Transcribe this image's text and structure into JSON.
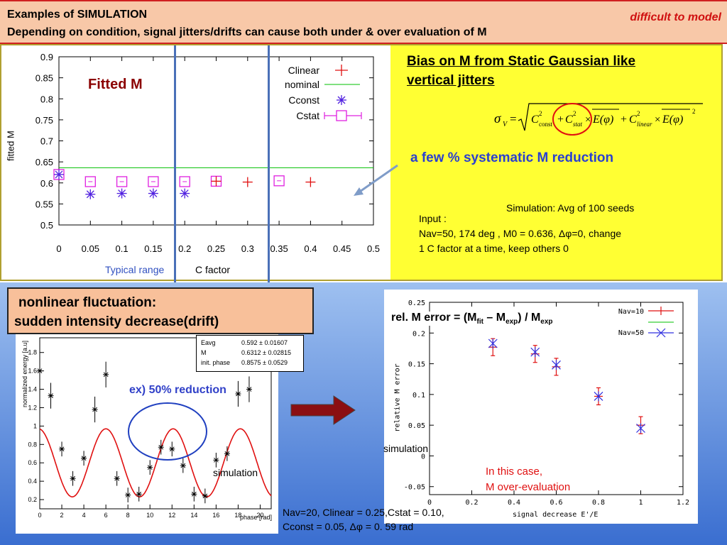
{
  "header": {
    "line1": "Examples of SIMULATION",
    "line2": "Depending on condition, signal jitters/drifts can cause both under & over evaluation of M",
    "tag": "difficult to model"
  },
  "top_chart": {
    "in_plot_label": "Fitted M",
    "ylabel": "fitted M",
    "xlabel": "C factor",
    "typical_range": "Typical range",
    "yticks": [
      "0.9",
      "0.85",
      "0.8",
      "0.75",
      "0.7",
      "0.65",
      "0.6",
      "0.55",
      "0.5"
    ],
    "xticks": [
      "0",
      "0.05",
      "0.1",
      "0.15",
      "0.2",
      "0.25",
      "0.3",
      "0.35",
      "0.4",
      "0.45",
      "0.5"
    ],
    "legend": [
      "Clinear",
      "nominal",
      "Cconst",
      "Cstat"
    ]
  },
  "right_text": {
    "bias_title_line1": "Bias on M from Static Gaussian like",
    "bias_title_line2": "vertical jitters",
    "formula": "σV = √( C²const + C²stat × E(φ) + C²linear × E(φ)² )",
    "reduction": "a few  % systematic M reduction",
    "sim_avg": "Simulation: Avg of 100 seeds",
    "input_label": "Input :",
    "input_line1": "Nav=50,  174 deg , M0 = 0.636, Δφ=0,  change",
    "input_line2": "1 C factor at a time, keep others 0"
  },
  "drift_box": {
    "line1": "nonlinear fluctuation:",
    "line2": "sudden intensity decrease(drift)"
  },
  "left_chart": {
    "ylabel": "normalized energy [a.u]",
    "xlabel": "phase  [rad]",
    "annotation": "ex)  50% reduction",
    "sim_label": "simulation",
    "stats": [
      {
        "name": "Eavg",
        "value": "0.592 ± 0.01607"
      },
      {
        "name": "M",
        "value": "0.6312 ± 0.02815"
      },
      {
        "name": "init. phase",
        "value": "0.8575 ± 0.0529"
      }
    ],
    "yticks": [
      "1.8",
      "1.6",
      "1.4",
      "1.2",
      "1",
      "0.8",
      "0.6",
      "0.4",
      "0.2"
    ],
    "xticks": [
      "0",
      "2",
      "4",
      "6",
      "8",
      "10",
      "12",
      "14",
      "16",
      "18",
      "20"
    ]
  },
  "params": {
    "line1": "Nav=20, Clinear = 0.25,Cstat = 0.10,",
    "line2": "Cconst = 0.05, Δφ = 0. 59 rad"
  },
  "right_chart": {
    "title": "rel. M error = (Mfit – Mexp) / Mexp",
    "ylabel": "relative M error",
    "xlabel": "signal decrease E'/E",
    "legend": [
      "Nav=10",
      "Nav=50"
    ],
    "sim_label": "simulation",
    "note_line1": "In this case,",
    "note_line2": "M over-evaluation",
    "yticks": [
      "0.25",
      "0.2",
      "0.15",
      "0.1",
      "0.05",
      "0",
      "-0.05"
    ],
    "xticks": [
      "0",
      "0.2",
      "0.4",
      "0.6",
      "0.8",
      "1",
      "1.2"
    ]
  },
  "chart_data": [
    {
      "type": "scatter",
      "xlabel": "C factor",
      "ylabel": "fitted M",
      "xlim": [
        0,
        0.5
      ],
      "ylim": [
        0.5,
        0.9
      ],
      "series": [
        {
          "name": "Clinear",
          "x": [
            0.25,
            0.3,
            0.4
          ],
          "y": [
            0.604,
            0.602,
            0.602
          ]
        },
        {
          "name": "nominal",
          "x": [
            0,
            0.5
          ],
          "y": [
            0.636,
            0.636
          ]
        },
        {
          "name": "Cconst",
          "x": [
            0,
            0.05,
            0.1,
            0.15,
            0.2
          ],
          "y": [
            0.62,
            0.573,
            0.575,
            0.575,
            0.575
          ]
        },
        {
          "name": "Cstat",
          "x": [
            0,
            0.05,
            0.1,
            0.15,
            0.2,
            0.25,
            0.35
          ],
          "y": [
            0.62,
            0.603,
            0.603,
            0.603,
            0.603,
            0.604,
            0.605
          ]
        }
      ]
    },
    {
      "type": "scatter",
      "xlabel": "phase  [rad]",
      "ylabel": "normalized energy [a.u]",
      "xlim": [
        0,
        21
      ],
      "ylim": [
        0.1,
        2.0
      ],
      "series": [
        {
          "name": "data",
          "x": [
            0,
            1,
            2,
            3,
            4,
            5,
            6,
            7,
            8,
            9,
            10,
            11,
            12,
            13,
            14,
            15,
            16,
            17,
            18,
            19
          ],
          "y": [
            1.6,
            1.33,
            0.75,
            0.43,
            0.65,
            1.18,
            1.56,
            0.43,
            0.25,
            0.26,
            0.55,
            0.77,
            0.75,
            0.57,
            0.26,
            0.24,
            0.63,
            0.7,
            1.35,
            1.4
          ]
        }
      ]
    },
    {
      "type": "scatter",
      "title": "rel. M error = (Mfit – Mexp) / Mexp",
      "xlabel": "signal decrease E'/E",
      "ylabel": "relative M error",
      "xlim": [
        0,
        1.2
      ],
      "ylim": [
        -0.05,
        0.25
      ],
      "series": [
        {
          "name": "Nav=10",
          "x": [
            0.3,
            0.5,
            0.6,
            0.8,
            1.0
          ],
          "y": [
            0.177,
            0.166,
            0.145,
            0.097,
            0.05
          ]
        },
        {
          "name": "Nav=50",
          "x": [
            0.3,
            0.5,
            0.6,
            0.8,
            1.0
          ],
          "y": [
            0.183,
            0.169,
            0.148,
            0.097,
            0.045
          ]
        }
      ]
    }
  ]
}
